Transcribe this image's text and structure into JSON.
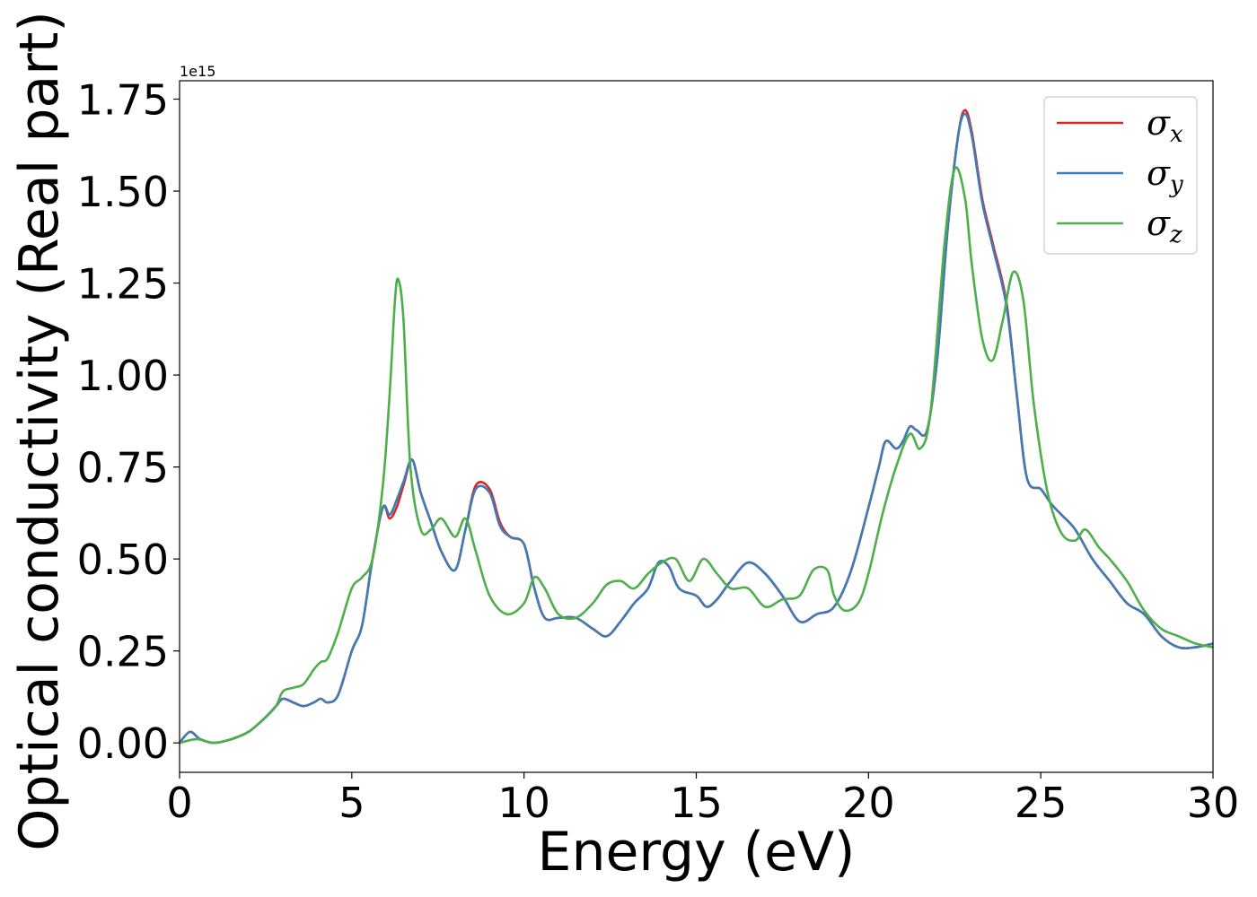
{
  "chart_data": {
    "type": "line",
    "xlabel": "Energy (eV)",
    "ylabel": "Optical conductivity (Real part)",
    "y_offset_label": "1e15",
    "xlim": [
      0,
      30
    ],
    "ylim": [
      -0.08,
      1.8
    ],
    "x_ticks": [
      0,
      5,
      10,
      15,
      20,
      25,
      30
    ],
    "x_tick_labels": [
      "0",
      "5",
      "10",
      "15",
      "20",
      "25",
      "30"
    ],
    "y_ticks": [
      0.0,
      0.25,
      0.5,
      0.75,
      1.0,
      1.25,
      1.5,
      1.75
    ],
    "y_tick_labels": [
      "0.00",
      "0.25",
      "0.50",
      "0.75",
      "1.00",
      "1.25",
      "1.50",
      "1.75"
    ],
    "grid": false,
    "legend_position": "top-right",
    "series": [
      {
        "name": "σ_x",
        "label_base": "σ",
        "label_sub": "x",
        "color": "#d62728",
        "x": [
          0,
          0.3,
          0.6,
          1.0,
          1.5,
          2.0,
          2.5,
          2.8,
          3.0,
          3.3,
          3.6,
          3.9,
          4.1,
          4.3,
          4.6,
          5.0,
          5.3,
          5.6,
          5.9,
          6.1,
          6.3,
          6.5,
          6.75,
          7.0,
          7.3,
          7.6,
          8.0,
          8.3,
          8.6,
          9.0,
          9.3,
          9.6,
          10.0,
          10.3,
          10.6,
          11.0,
          11.5,
          12.0,
          12.4,
          12.8,
          13.2,
          13.6,
          13.9,
          14.2,
          14.5,
          15.0,
          15.3,
          15.6,
          16.0,
          16.5,
          17.0,
          17.5,
          18.0,
          18.5,
          19.0,
          19.5,
          20.0,
          20.3,
          20.5,
          20.8,
          21.0,
          21.2,
          21.4,
          21.7,
          22.0,
          22.3,
          22.6,
          22.8,
          23.0,
          23.3,
          23.6,
          24.0,
          24.3,
          24.6,
          25.0,
          25.3,
          25.6,
          26.0,
          26.5,
          27.0,
          27.5,
          28.0,
          28.5,
          29.0,
          29.5,
          30.0
        ],
        "y": [
          0.0,
          0.03,
          0.01,
          0.0,
          0.01,
          0.03,
          0.07,
          0.1,
          0.12,
          0.11,
          0.1,
          0.11,
          0.12,
          0.11,
          0.13,
          0.25,
          0.32,
          0.5,
          0.64,
          0.61,
          0.64,
          0.7,
          0.77,
          0.68,
          0.6,
          0.52,
          0.47,
          0.58,
          0.7,
          0.69,
          0.6,
          0.56,
          0.54,
          0.42,
          0.34,
          0.34,
          0.34,
          0.31,
          0.29,
          0.33,
          0.38,
          0.42,
          0.49,
          0.48,
          0.42,
          0.4,
          0.37,
          0.39,
          0.44,
          0.49,
          0.46,
          0.4,
          0.33,
          0.35,
          0.37,
          0.47,
          0.64,
          0.75,
          0.82,
          0.8,
          0.82,
          0.86,
          0.85,
          0.85,
          1.05,
          1.4,
          1.65,
          1.72,
          1.66,
          1.48,
          1.36,
          1.2,
          0.95,
          0.72,
          0.69,
          0.65,
          0.62,
          0.58,
          0.5,
          0.44,
          0.38,
          0.35,
          0.29,
          0.26,
          0.26,
          0.27
        ]
      },
      {
        "name": "σ_y",
        "label_base": "σ",
        "label_sub": "y",
        "color": "#3f7bb5",
        "x": [
          0,
          0.3,
          0.6,
          1.0,
          1.5,
          2.0,
          2.5,
          2.8,
          3.0,
          3.3,
          3.6,
          3.9,
          4.1,
          4.3,
          4.6,
          5.0,
          5.3,
          5.6,
          5.9,
          6.1,
          6.3,
          6.5,
          6.75,
          7.0,
          7.3,
          7.6,
          8.0,
          8.3,
          8.6,
          9.0,
          9.3,
          9.6,
          10.0,
          10.3,
          10.6,
          11.0,
          11.5,
          12.0,
          12.4,
          12.8,
          13.2,
          13.6,
          13.9,
          14.2,
          14.5,
          15.0,
          15.3,
          15.6,
          16.0,
          16.5,
          17.0,
          17.5,
          18.0,
          18.5,
          19.0,
          19.5,
          20.0,
          20.3,
          20.5,
          20.8,
          21.0,
          21.2,
          21.4,
          21.7,
          22.0,
          22.3,
          22.6,
          22.8,
          23.0,
          23.3,
          23.6,
          24.0,
          24.3,
          24.6,
          25.0,
          25.3,
          25.6,
          26.0,
          26.5,
          27.0,
          27.5,
          28.0,
          28.5,
          29.0,
          29.5,
          30.0
        ],
        "y": [
          0.0,
          0.03,
          0.01,
          0.0,
          0.01,
          0.03,
          0.07,
          0.1,
          0.12,
          0.11,
          0.1,
          0.11,
          0.12,
          0.11,
          0.13,
          0.25,
          0.32,
          0.5,
          0.64,
          0.62,
          0.66,
          0.71,
          0.77,
          0.68,
          0.6,
          0.52,
          0.47,
          0.58,
          0.69,
          0.68,
          0.59,
          0.56,
          0.54,
          0.42,
          0.34,
          0.34,
          0.34,
          0.31,
          0.29,
          0.33,
          0.38,
          0.42,
          0.49,
          0.48,
          0.42,
          0.4,
          0.37,
          0.39,
          0.44,
          0.49,
          0.46,
          0.4,
          0.33,
          0.35,
          0.37,
          0.47,
          0.64,
          0.75,
          0.82,
          0.8,
          0.82,
          0.86,
          0.85,
          0.85,
          1.05,
          1.4,
          1.65,
          1.71,
          1.65,
          1.47,
          1.35,
          1.19,
          0.95,
          0.72,
          0.69,
          0.65,
          0.62,
          0.58,
          0.5,
          0.44,
          0.38,
          0.35,
          0.29,
          0.26,
          0.26,
          0.27
        ]
      },
      {
        "name": "σ_z",
        "label_base": "σ",
        "label_sub": "z",
        "color": "#4daf4a",
        "x": [
          0,
          0.5,
          1.0,
          1.5,
          2.0,
          2.5,
          2.8,
          3.0,
          3.3,
          3.6,
          3.9,
          4.1,
          4.3,
          4.6,
          5.0,
          5.3,
          5.6,
          5.9,
          6.1,
          6.25,
          6.35,
          6.5,
          6.7,
          7.0,
          7.3,
          7.6,
          8.0,
          8.3,
          8.6,
          9.0,
          9.5,
          10.0,
          10.3,
          10.6,
          11.0,
          11.5,
          12.0,
          12.4,
          12.8,
          13.2,
          13.6,
          14.0,
          14.4,
          14.8,
          15.2,
          15.6,
          16.0,
          16.5,
          17.0,
          17.5,
          18.0,
          18.4,
          18.8,
          19.0,
          19.3,
          19.7,
          20.0,
          20.4,
          20.8,
          21.2,
          21.5,
          21.8,
          22.2,
          22.5,
          22.8,
          23.0,
          23.3,
          23.6,
          23.9,
          24.2,
          24.5,
          24.8,
          25.2,
          25.6,
          26.0,
          26.3,
          26.7,
          27.0,
          27.5,
          28.0,
          28.5,
          29.0,
          29.5,
          30.0
        ],
        "y": [
          0.0,
          0.01,
          0.0,
          0.01,
          0.03,
          0.07,
          0.1,
          0.14,
          0.15,
          0.16,
          0.2,
          0.22,
          0.23,
          0.3,
          0.42,
          0.45,
          0.5,
          0.7,
          0.95,
          1.2,
          1.26,
          1.15,
          0.75,
          0.58,
          0.58,
          0.61,
          0.56,
          0.61,
          0.52,
          0.4,
          0.35,
          0.38,
          0.45,
          0.42,
          0.35,
          0.34,
          0.38,
          0.43,
          0.44,
          0.42,
          0.46,
          0.49,
          0.5,
          0.44,
          0.5,
          0.46,
          0.42,
          0.42,
          0.37,
          0.39,
          0.4,
          0.47,
          0.47,
          0.4,
          0.36,
          0.38,
          0.46,
          0.62,
          0.75,
          0.84,
          0.8,
          0.9,
          1.35,
          1.56,
          1.48,
          1.3,
          1.1,
          1.04,
          1.15,
          1.28,
          1.2,
          0.92,
          0.68,
          0.57,
          0.55,
          0.58,
          0.53,
          0.5,
          0.44,
          0.36,
          0.31,
          0.29,
          0.27,
          0.26
        ]
      }
    ]
  }
}
